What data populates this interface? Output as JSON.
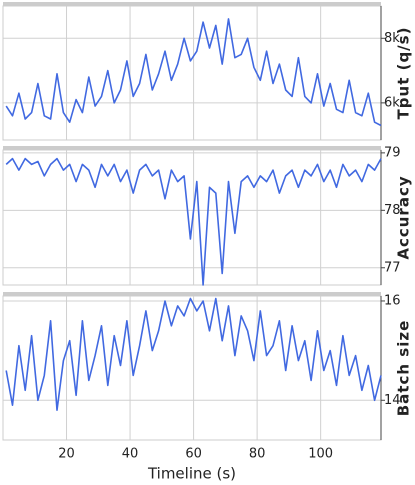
{
  "chart_data": [
    {
      "type": "line",
      "ylabel": "Tput (q/s)",
      "x": [
        1,
        3,
        5,
        7,
        9,
        11,
        13,
        15,
        17,
        19,
        21,
        23,
        25,
        27,
        29,
        31,
        33,
        35,
        37,
        39,
        41,
        43,
        45,
        47,
        49,
        51,
        53,
        55,
        57,
        59,
        61,
        63,
        65,
        67,
        69,
        71,
        73,
        75,
        77,
        79,
        81,
        83,
        85,
        87,
        89,
        91,
        93,
        95,
        97,
        99,
        101,
        103,
        105,
        107,
        109,
        111,
        113,
        115,
        117,
        119
      ],
      "series": [
        {
          "name": "Tput",
          "color": "#4169e1",
          "values": [
            5900,
            5600,
            6300,
            5500,
            5700,
            6600,
            5600,
            5500,
            6900,
            5700,
            5400,
            6100,
            5700,
            6800,
            5900,
            6200,
            7000,
            6000,
            6400,
            7300,
            6200,
            6600,
            7500,
            6400,
            6900,
            7600,
            6700,
            7200,
            8000,
            7300,
            7600,
            8500,
            7700,
            8400,
            7200,
            8600,
            7400,
            7500,
            8000,
            7100,
            6700,
            7600,
            6600,
            7200,
            6400,
            6200,
            7400,
            6200,
            6000,
            6900,
            5900,
            6600,
            5800,
            5700,
            6700,
            5700,
            5600,
            6300,
            5400,
            5300
          ]
        }
      ],
      "xlim": [
        0,
        119
      ],
      "xticks": [
        20,
        40,
        60,
        80,
        100
      ],
      "ylim": [
        4850,
        9000
      ],
      "yticks": [
        {
          "value": 6000,
          "label": "6k"
        },
        {
          "value": 8000,
          "label": "8k"
        }
      ],
      "grid": true
    },
    {
      "type": "line",
      "ylabel": "Accuracy",
      "x": [
        1,
        3,
        5,
        7,
        9,
        11,
        13,
        15,
        17,
        19,
        21,
        23,
        25,
        27,
        29,
        31,
        33,
        35,
        37,
        39,
        41,
        43,
        45,
        47,
        49,
        51,
        53,
        55,
        57,
        59,
        61,
        63,
        65,
        67,
        69,
        71,
        73,
        75,
        77,
        79,
        81,
        83,
        85,
        87,
        89,
        91,
        93,
        95,
        97,
        99,
        101,
        103,
        105,
        107,
        109,
        111,
        113,
        115,
        117,
        119
      ],
      "series": [
        {
          "name": "Accuracy",
          "color": "#4169e1",
          "values": [
            78.8,
            78.9,
            78.7,
            78.9,
            78.8,
            78.85,
            78.6,
            78.8,
            78.9,
            78.7,
            78.8,
            78.5,
            78.8,
            78.7,
            78.4,
            78.8,
            78.6,
            78.8,
            78.5,
            78.7,
            78.3,
            78.7,
            78.8,
            78.6,
            78.7,
            78.2,
            78.7,
            78.5,
            78.6,
            77.5,
            78.5,
            76.7,
            78.4,
            78.3,
            76.9,
            78.5,
            77.6,
            78.5,
            78.6,
            78.4,
            78.6,
            78.5,
            78.7,
            78.3,
            78.6,
            78.7,
            78.4,
            78.7,
            78.6,
            78.8,
            78.5,
            78.7,
            78.4,
            78.8,
            78.6,
            78.7,
            78.5,
            78.8,
            78.7,
            78.9
          ]
        }
      ],
      "xlim": [
        0,
        119
      ],
      "xticks": [
        20,
        40,
        60,
        80,
        100
      ],
      "ylim": [
        76.7,
        79.05
      ],
      "yticks": [
        77,
        78,
        79
      ],
      "grid": true
    },
    {
      "type": "line",
      "ylabel": "Batch size",
      "xlabel": "Timeline (s)",
      "x": [
        1,
        3,
        5,
        7,
        9,
        11,
        13,
        15,
        17,
        19,
        21,
        23,
        25,
        27,
        29,
        31,
        33,
        35,
        37,
        39,
        41,
        43,
        45,
        47,
        49,
        51,
        53,
        55,
        57,
        59,
        61,
        63,
        65,
        67,
        69,
        71,
        73,
        75,
        77,
        79,
        81,
        83,
        85,
        87,
        89,
        91,
        93,
        95,
        97,
        99,
        101,
        103,
        105,
        107,
        109,
        111,
        113,
        115,
        117,
        119
      ],
      "series": [
        {
          "name": "Batch size",
          "color": "#4169e1",
          "values": [
            14.6,
            13.9,
            15.1,
            14.2,
            15.3,
            14.0,
            14.5,
            15.6,
            13.8,
            14.8,
            15.2,
            14.1,
            15.6,
            14.4,
            14.9,
            15.5,
            14.3,
            15.3,
            14.7,
            15.6,
            14.5,
            15.1,
            15.8,
            15.0,
            15.4,
            16.0,
            15.5,
            15.9,
            15.7,
            16.05,
            15.8,
            16.0,
            15.4,
            16.05,
            15.2,
            15.9,
            14.9,
            15.7,
            15.4,
            14.8,
            15.8,
            14.9,
            15.1,
            15.6,
            14.6,
            15.5,
            14.8,
            15.2,
            14.4,
            15.4,
            14.6,
            15.0,
            14.3,
            15.3,
            14.5,
            14.9,
            14.2,
            14.7,
            14.0,
            14.5
          ]
        }
      ],
      "xlim": [
        0,
        119
      ],
      "xticks": [
        20,
        40,
        60,
        80,
        100
      ],
      "ylim": [
        13.2,
        16.1
      ],
      "yticks": [
        14,
        16
      ],
      "grid": true
    }
  ]
}
